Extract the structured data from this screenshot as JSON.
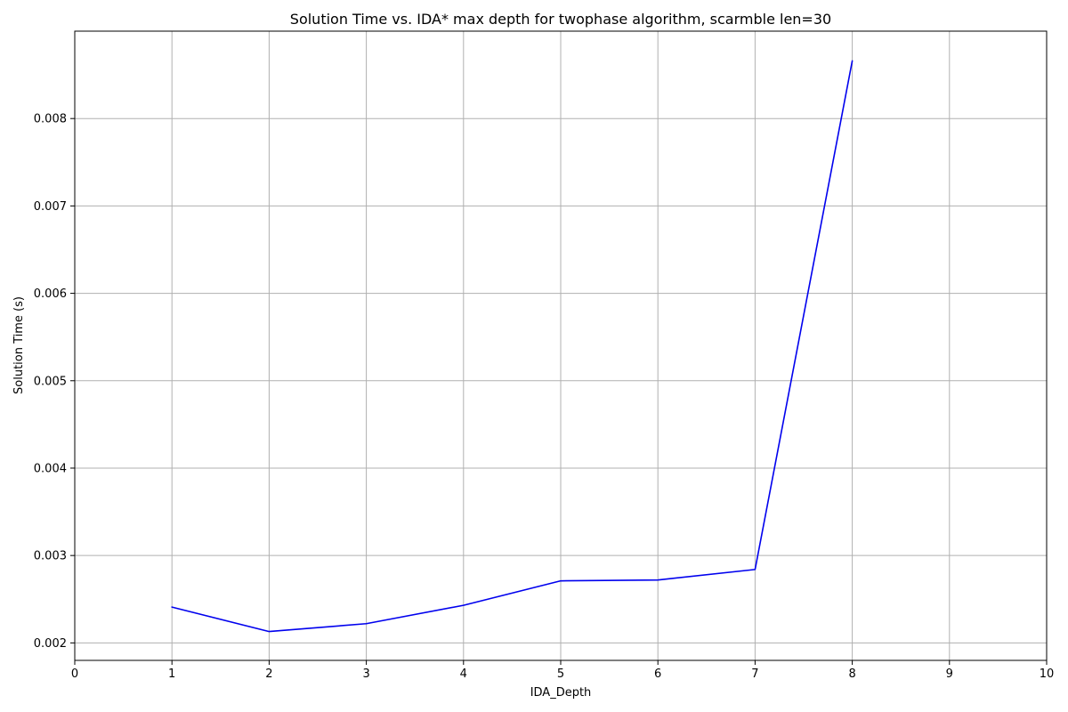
{
  "chart_data": {
    "type": "line",
    "title": "Solution Time vs. IDA* max depth for twophase algorithm, scarmble len=30",
    "xlabel": "IDA_Depth",
    "ylabel": "Solution Time (s)",
    "xlim": [
      0,
      10
    ],
    "ylim": [
      0.0018,
      0.009
    ],
    "xticks": [
      "0",
      "1",
      "2",
      "3",
      "4",
      "5",
      "6",
      "7",
      "8",
      "9",
      "10"
    ],
    "yticks": [
      "0.002",
      "0.003",
      "0.004",
      "0.005",
      "0.006",
      "0.007",
      "0.008"
    ],
    "grid": true,
    "series": [
      {
        "color": "#0000ee",
        "x": [
          1,
          2,
          3,
          4,
          5,
          6,
          7,
          8
        ],
        "y": [
          0.00241,
          0.00213,
          0.00222,
          0.00243,
          0.00271,
          0.00272,
          0.00284,
          0.00866
        ]
      }
    ]
  }
}
